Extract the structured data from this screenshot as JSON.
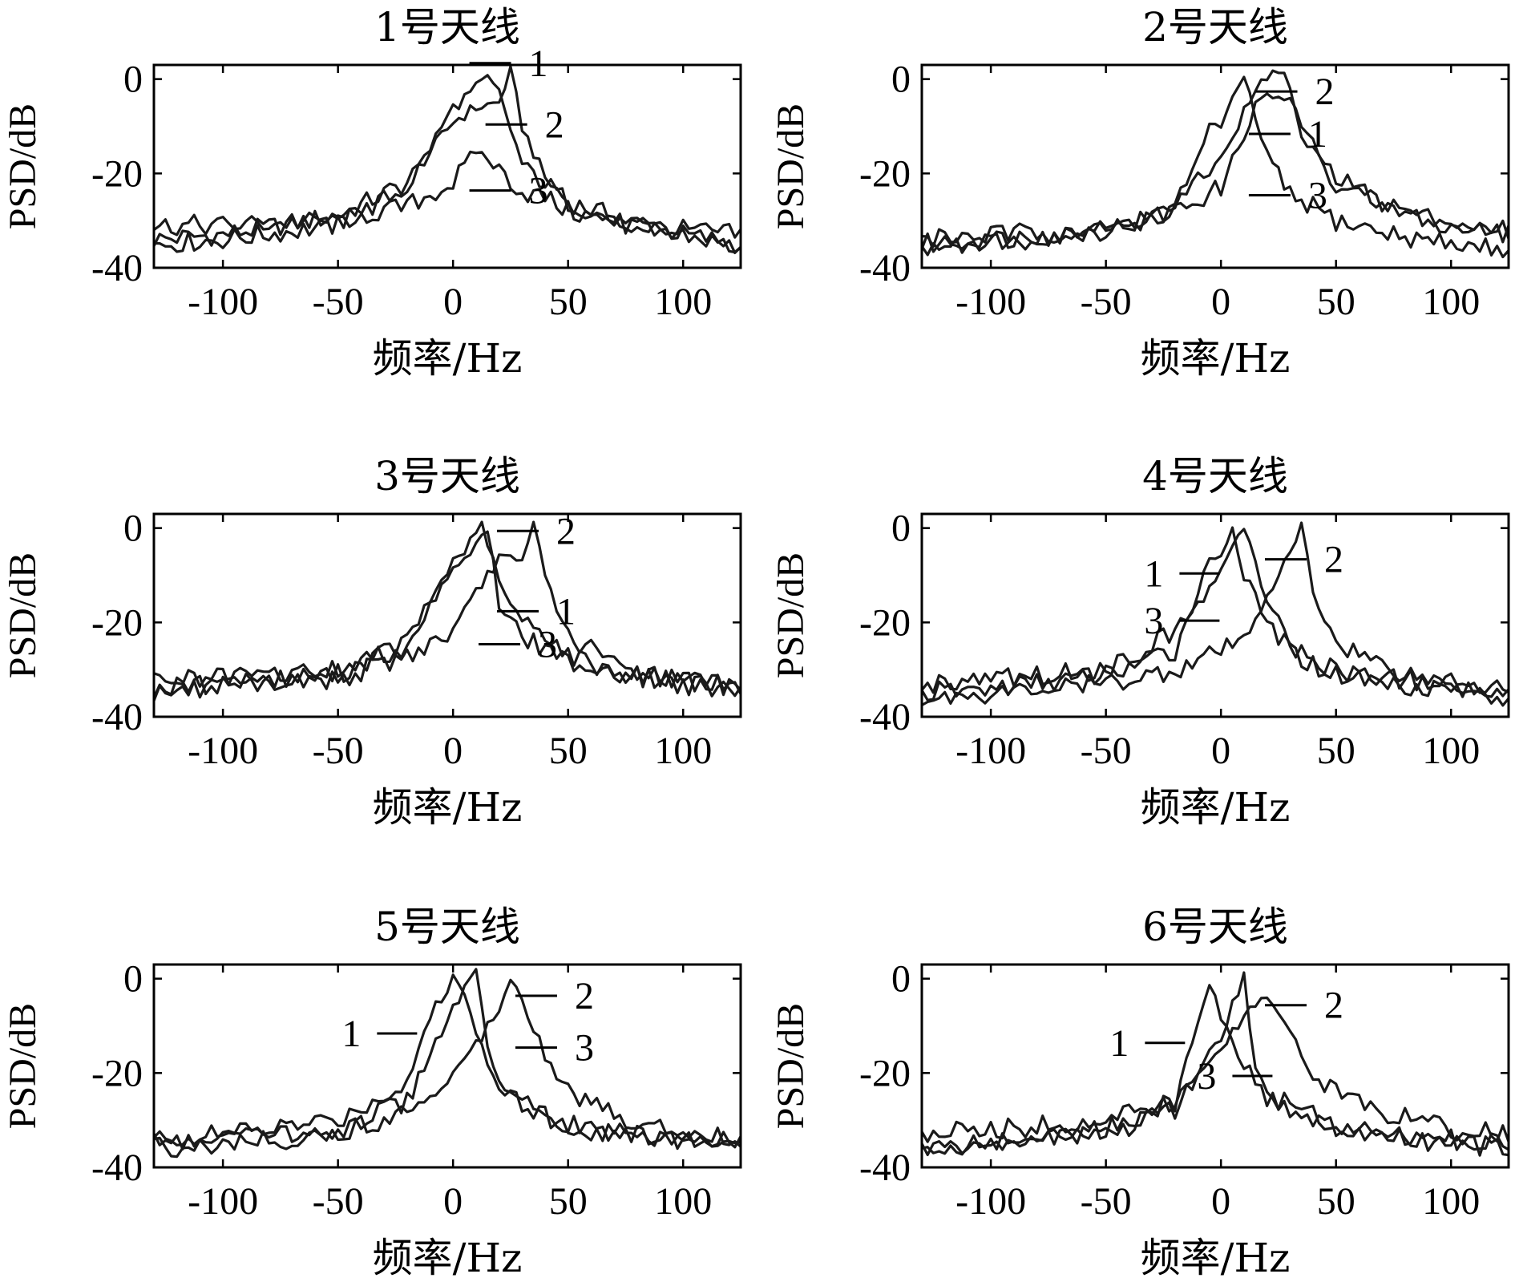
{
  "chart_data": [
    {
      "type": "line",
      "title": "1号天线",
      "xlabel": "频率/Hz",
      "ylabel": "PSD/dB",
      "xlim": [
        -130,
        125
      ],
      "ylim": [
        -40,
        3
      ],
      "xticks": [
        -100,
        -50,
        0,
        50,
        100
      ],
      "yticks": [
        0,
        -20,
        -40
      ],
      "grid": false,
      "series": [
        {
          "name": "1",
          "x": [
            -130,
            -100,
            -50,
            -20,
            0,
            10,
            20,
            25,
            30,
            40,
            50,
            75,
            100,
            125
          ],
          "values": [
            -34,
            -33,
            -29,
            -22,
            -9,
            -6,
            -5,
            2,
            -10,
            -21,
            -26,
            -30,
            -33,
            -35
          ]
        },
        {
          "name": "2",
          "x": [
            -130,
            -100,
            -50,
            -20,
            0,
            10,
            15,
            20,
            30,
            50,
            75,
            100,
            125
          ],
          "values": [
            -35,
            -34,
            -31,
            -23,
            -6,
            -2,
            0,
            -3,
            -18,
            -26,
            -31,
            -33,
            -36
          ]
        },
        {
          "name": "3",
          "x": [
            -130,
            -100,
            -50,
            -20,
            0,
            10,
            20,
            30,
            40,
            50,
            75,
            100,
            125
          ],
          "values": [
            -31,
            -31,
            -30,
            -27,
            -22,
            -15,
            -19,
            -24,
            -25,
            -28,
            -31,
            -32,
            -33
          ]
        }
      ],
      "annotations": [
        {
          "text": "1",
          "x": 28,
          "y": 1
        },
        {
          "text": "2",
          "x": 35,
          "y": -12
        },
        {
          "text": "3",
          "x": 28,
          "y": -26
        }
      ]
    },
    {
      "type": "line",
      "title": "2号天线",
      "xlabel": "频率/Hz",
      "ylabel": "PSD/dB",
      "xlim": [
        -130,
        125
      ],
      "ylim": [
        -40,
        3
      ],
      "xticks": [
        -100,
        -50,
        0,
        50,
        100
      ],
      "yticks": [
        0,
        -20,
        -40
      ],
      "grid": false,
      "series": [
        {
          "name": "1",
          "x": [
            -130,
            -100,
            -50,
            -20,
            0,
            15,
            20,
            30,
            40,
            50,
            75,
            100,
            125
          ],
          "values": [
            -35,
            -34,
            -32,
            -28,
            -23,
            -6,
            -3,
            -5,
            -14,
            -21,
            -27,
            -31,
            -33
          ]
        },
        {
          "name": "2",
          "x": [
            -130,
            -100,
            -50,
            -20,
            0,
            10,
            20,
            28,
            35,
            50,
            75,
            100,
            125
          ],
          "values": [
            -34,
            -33,
            -32,
            -27,
            -17,
            -7,
            1,
            1,
            -12,
            -22,
            -28,
            -31,
            -32
          ]
        },
        {
          "name": "3",
          "x": [
            -130,
            -100,
            -50,
            -20,
            -5,
            0,
            10,
            20,
            30,
            40,
            50,
            75,
            100,
            125
          ],
          "values": [
            -36,
            -35,
            -32,
            -28,
            -10,
            -10,
            0,
            -16,
            -25,
            -27,
            -30,
            -33,
            -35,
            -36
          ]
        }
      ],
      "annotations": [
        {
          "text": "2",
          "x": 36,
          "y": -5
        },
        {
          "text": "1",
          "x": 33,
          "y": -14
        },
        {
          "text": "3",
          "x": 33,
          "y": -27
        }
      ]
    },
    {
      "type": "line",
      "title": "3号天线",
      "xlabel": "频率/Hz",
      "ylabel": "PSD/dB",
      "xlim": [
        -130,
        125
      ],
      "ylim": [
        -40,
        3
      ],
      "xticks": [
        -100,
        -50,
        0,
        50,
        100
      ],
      "yticks": [
        0,
        -20,
        -40
      ],
      "grid": false,
      "series": [
        {
          "name": "1",
          "x": [
            -130,
            -100,
            -50,
            -20,
            0,
            10,
            13,
            20,
            30,
            40,
            50,
            75,
            100,
            125
          ],
          "values": [
            -34,
            -33,
            -31,
            -24,
            -7,
            -2,
            1,
            -12,
            -20,
            -22,
            -27,
            -31,
            -33,
            -35
          ]
        },
        {
          "name": "2",
          "x": [
            -130,
            -100,
            -50,
            -20,
            0,
            10,
            20,
            30,
            35,
            40,
            50,
            75,
            100,
            125
          ],
          "values": [
            -35,
            -34,
            -32,
            -27,
            -22,
            -14,
            -6,
            -8,
            1,
            -10,
            -23,
            -30,
            -32,
            -34
          ]
        },
        {
          "name": "3",
          "x": [
            -130,
            -100,
            -50,
            -20,
            0,
            10,
            15,
            20,
            30,
            40,
            50,
            75,
            100,
            125
          ],
          "values": [
            -32,
            -32,
            -30,
            -25,
            -8,
            -4,
            0,
            -16,
            -23,
            -26,
            -28,
            -31,
            -32,
            -34
          ]
        }
      ],
      "annotations": [
        {
          "text": "2",
          "x": 40,
          "y": -3
        },
        {
          "text": "1",
          "x": 40,
          "y": -20
        },
        {
          "text": "3",
          "x": 32,
          "y": -27
        }
      ]
    },
    {
      "type": "line",
      "title": "4号天线",
      "xlabel": "频率/Hz",
      "ylabel": "PSD/dB",
      "xlim": [
        -130,
        125
      ],
      "ylim": [
        -40,
        3
      ],
      "xticks": [
        -100,
        -50,
        0,
        50,
        100
      ],
      "yticks": [
        0,
        -20,
        -40
      ],
      "grid": false,
      "series": [
        {
          "name": "1",
          "x": [
            -130,
            -100,
            -50,
            -20,
            -5,
            0,
            5,
            10,
            20,
            30,
            40,
            50,
            75,
            100,
            125
          ],
          "values": [
            -35,
            -34,
            -31,
            -26,
            -7,
            -5,
            0,
            -10,
            -20,
            -26,
            -29,
            -31,
            -33,
            -34,
            -36
          ]
        },
        {
          "name": "2",
          "x": [
            -130,
            -100,
            -50,
            -20,
            0,
            10,
            20,
            30,
            35,
            40,
            50,
            75,
            100,
            125
          ],
          "values": [
            -36,
            -35,
            -33,
            -30,
            -26,
            -24,
            -14,
            -6,
            1,
            -14,
            -24,
            -30,
            -33,
            -35
          ]
        },
        {
          "name": "3",
          "x": [
            -130,
            -100,
            -50,
            -20,
            0,
            5,
            10,
            20,
            30,
            40,
            50,
            75,
            100,
            125
          ],
          "values": [
            -33,
            -32,
            -30,
            -22,
            -10,
            -3,
            1,
            -16,
            -25,
            -28,
            -30,
            -32,
            -33,
            -34
          ]
        }
      ],
      "annotations": [
        {
          "text": "1",
          "x": -25,
          "y": -12
        },
        {
          "text": "2",
          "x": 40,
          "y": -9
        },
        {
          "text": "3",
          "x": -25,
          "y": -22
        }
      ]
    },
    {
      "type": "line",
      "title": "5号天线",
      "xlabel": "频率/Hz",
      "ylabel": "PSD/dB",
      "xlim": [
        -130,
        125
      ],
      "ylim": [
        -40,
        3
      ],
      "xticks": [
        -100,
        -50,
        0,
        50,
        100
      ],
      "yticks": [
        0,
        -20,
        -40
      ],
      "grid": false,
      "series": [
        {
          "name": "1",
          "x": [
            -130,
            -100,
            -50,
            -20,
            -10,
            0,
            5,
            10,
            20,
            30,
            40,
            50,
            75,
            100,
            125
          ],
          "values": [
            -34,
            -33,
            -30,
            -22,
            -8,
            0,
            -3,
            -12,
            -22,
            -26,
            -29,
            -32,
            -33,
            -34,
            -36
          ]
        },
        {
          "name": "2",
          "x": [
            -130,
            -100,
            -50,
            -20,
            0,
            10,
            20,
            25,
            30,
            40,
            50,
            75,
            100,
            125
          ],
          "values": [
            -36,
            -35,
            -33,
            -28,
            -20,
            -14,
            -6,
            1,
            -4,
            -16,
            -24,
            -30,
            -32,
            -34
          ]
        },
        {
          "name": "3",
          "x": [
            -130,
            -100,
            -50,
            -20,
            0,
            10,
            15,
            20,
            30,
            40,
            50,
            75,
            100,
            125
          ],
          "values": [
            -35,
            -34,
            -32,
            -26,
            -6,
            1,
            -15,
            -22,
            -26,
            -28,
            -31,
            -33,
            -34,
            -35
          ]
        }
      ],
      "annotations": [
        {
          "text": "1",
          "x": -40,
          "y": -14
        },
        {
          "text": "2",
          "x": 48,
          "y": -6
        },
        {
          "text": "3",
          "x": 48,
          "y": -17
        }
      ]
    },
    {
      "type": "line",
      "title": "6号天线",
      "xlabel": "频率/Hz",
      "ylabel": "PSD/dB",
      "xlim": [
        -130,
        125
      ],
      "ylim": [
        -40,
        3
      ],
      "xticks": [
        -100,
        -50,
        0,
        50,
        100
      ],
      "yticks": [
        0,
        -20,
        -40
      ],
      "grid": false,
      "series": [
        {
          "name": "1",
          "x": [
            -130,
            -100,
            -50,
            -20,
            -10,
            -5,
            0,
            10,
            20,
            30,
            40,
            50,
            75,
            100,
            125
          ],
          "values": [
            -36,
            -35,
            -32,
            -26,
            -10,
            0,
            -8,
            -18,
            -25,
            -28,
            -30,
            -32,
            -34,
            -35,
            -36
          ]
        },
        {
          "name": "2",
          "x": [
            -130,
            -100,
            -50,
            -20,
            0,
            10,
            20,
            30,
            40,
            50,
            75,
            100,
            125
          ],
          "values": [
            -33,
            -32,
            -30,
            -26,
            -16,
            -7,
            -3,
            -12,
            -20,
            -24,
            -29,
            -32,
            -33
          ]
        },
        {
          "name": "3",
          "x": [
            -130,
            -100,
            -50,
            -20,
            0,
            10,
            15,
            20,
            30,
            40,
            50,
            75,
            100,
            125
          ],
          "values": [
            -36,
            -35,
            -33,
            -28,
            -12,
            1,
            -20,
            -24,
            -27,
            -29,
            -31,
            -33,
            -34,
            -35
          ]
        }
      ],
      "annotations": [
        {
          "text": "1",
          "x": -40,
          "y": -16
        },
        {
          "text": "2",
          "x": 40,
          "y": -8
        },
        {
          "text": "3",
          "x": -2,
          "y": -23
        }
      ]
    }
  ]
}
